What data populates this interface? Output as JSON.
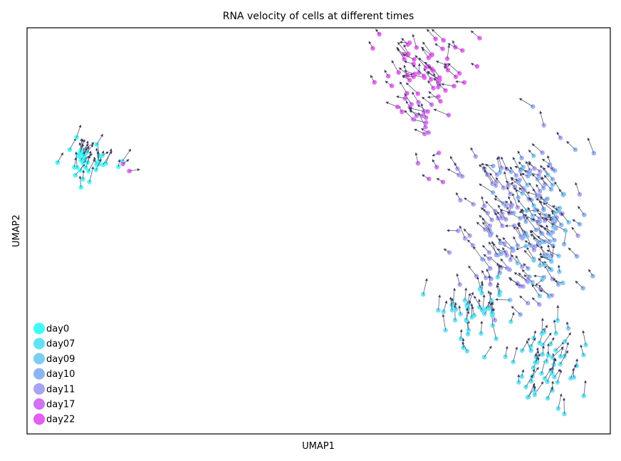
{
  "chart_data": {
    "type": "scatter",
    "title": "RNA velocity of cells at different times",
    "xlabel": "UMAP1",
    "ylabel": "UMAP2",
    "xlim": [
      0,
      100
    ],
    "ylim": [
      0,
      100
    ],
    "ticks": "none",
    "grid": false,
    "legend": {
      "position": "lower-left",
      "entries": [
        {
          "label": "day0",
          "color": "#3ffbf8"
        },
        {
          "label": "day07",
          "color": "#5ee3f4"
        },
        {
          "label": "day09",
          "color": "#7ccdf2"
        },
        {
          "label": "day10",
          "color": "#8db4f1"
        },
        {
          "label": "day11",
          "color": "#a9a3f4"
        },
        {
          "label": "day17",
          "color": "#cf73f2"
        },
        {
          "label": "day22",
          "color": "#e45ef2"
        }
      ]
    },
    "arrow_color": "#3d3d5c",
    "clusters": [
      {
        "series": "day0",
        "n": 40,
        "center": [
          10,
          67
        ],
        "spread": [
          4,
          4
        ],
        "velocity": [
          0.5,
          1.5
        ]
      },
      {
        "series": "day22",
        "n": 2,
        "center": [
          17,
          66
        ],
        "spread": [
          1,
          1
        ],
        "velocity": [
          1.2,
          0.4
        ]
      },
      {
        "series": "day22",
        "n": 60,
        "center": [
          68,
          89
        ],
        "spread": [
          6,
          7
        ],
        "velocity": [
          -1,
          1
        ]
      },
      {
        "series": "day17",
        "n": 14,
        "center": [
          70,
          79
        ],
        "spread": [
          5,
          4
        ],
        "velocity": [
          -1,
          1
        ]
      },
      {
        "series": "day17",
        "n": 5,
        "center": [
          69,
          65
        ],
        "spread": [
          3,
          3
        ],
        "velocity": [
          -1,
          1
        ]
      },
      {
        "series": "day11",
        "n": 110,
        "center": [
          83,
          52
        ],
        "spread": [
          8,
          15
        ],
        "velocity": [
          -1,
          1
        ]
      },
      {
        "series": "day10",
        "n": 70,
        "center": [
          87,
          55
        ],
        "spread": [
          7,
          16
        ],
        "velocity": [
          -1,
          1
        ]
      },
      {
        "series": "day09",
        "n": 40,
        "center": [
          88,
          50
        ],
        "spread": [
          6,
          15
        ],
        "velocity": [
          -1,
          1
        ]
      },
      {
        "series": "day07",
        "n": 45,
        "center": [
          76,
          30
        ],
        "spread": [
          6,
          6
        ],
        "velocity": [
          0,
          2
        ]
      },
      {
        "series": "day07",
        "n": 55,
        "center": [
          88,
          17
        ],
        "spread": [
          6,
          8
        ],
        "velocity": [
          0.5,
          2
        ]
      }
    ]
  }
}
